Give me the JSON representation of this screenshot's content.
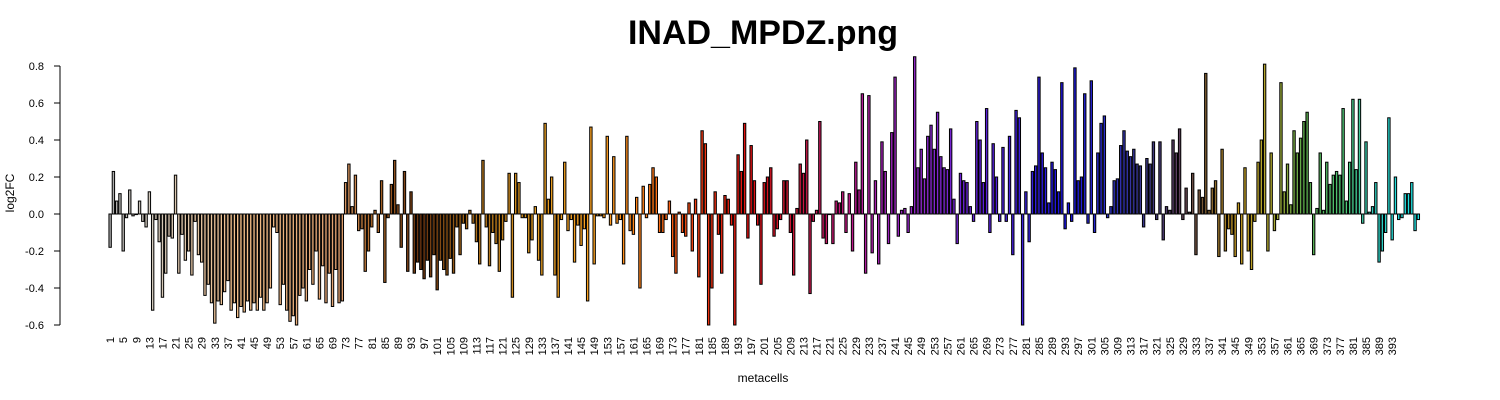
{
  "chart_data": {
    "type": "bar",
    "title": "INAD_MPDZ.png",
    "xlabel": "metacells",
    "ylabel": "log2FC",
    "ylim": [
      -0.6,
      0.8
    ],
    "y_ticks": [
      "-0.6",
      "-0.4",
      "-0.2",
      "0.0",
      "0.2",
      "0.4",
      "0.6",
      "0.8"
    ],
    "x_tick_labels": [
      "1",
      "5",
      "9",
      "13",
      "17",
      "21",
      "25",
      "29",
      "33",
      "37",
      "41",
      "45",
      "49",
      "53",
      "57",
      "61",
      "65",
      "69",
      "73",
      "77",
      "81",
      "85",
      "89",
      "93",
      "97",
      "101",
      "105",
      "109",
      "113",
      "117",
      "121",
      "125",
      "129",
      "133",
      "137",
      "141",
      "145",
      "149",
      "153",
      "157",
      "161",
      "165",
      "169",
      "173",
      "177",
      "181",
      "185",
      "189",
      "193",
      "197",
      "201",
      "205",
      "209",
      "213",
      "217",
      "221",
      "225",
      "229",
      "233",
      "237",
      "241",
      "245",
      "249",
      "253",
      "257",
      "261",
      "265",
      "269",
      "273",
      "277",
      "281",
      "285",
      "289",
      "293",
      "297",
      "301",
      "305",
      "309",
      "313",
      "317",
      "321",
      "325",
      "329",
      "333",
      "337",
      "341",
      "345",
      "349",
      "353",
      "357",
      "361",
      "365",
      "369",
      "373",
      "377",
      "381",
      "385",
      "389",
      "393"
    ],
    "values": [
      -0.18,
      0.23,
      0.07,
      0.11,
      -0.2,
      -0.02,
      0.13,
      -0.01,
      0.0,
      0.07,
      -0.04,
      -0.07,
      0.12,
      -0.52,
      -0.03,
      -0.15,
      -0.45,
      -0.32,
      -0.12,
      -0.13,
      0.21,
      -0.32,
      -0.11,
      -0.25,
      -0.2,
      -0.33,
      -0.04,
      -0.22,
      -0.26,
      -0.44,
      -0.38,
      -0.48,
      -0.59,
      -0.47,
      -0.49,
      -0.42,
      -0.36,
      -0.52,
      -0.48,
      -0.56,
      -0.5,
      -0.53,
      -0.47,
      -0.52,
      -0.48,
      -0.52,
      -0.45,
      -0.52,
      -0.48,
      -0.4,
      -0.07,
      -0.1,
      -0.49,
      -0.38,
      -0.52,
      -0.58,
      -0.55,
      -0.61,
      -0.44,
      -0.4,
      -0.47,
      -0.3,
      -0.38,
      -0.2,
      -0.46,
      -0.28,
      -0.48,
      -0.32,
      -0.5,
      -0.3,
      -0.48,
      -0.47,
      0.17,
      0.27,
      0.04,
      0.21,
      -0.09,
      -0.08,
      -0.31,
      -0.2,
      -0.07,
      0.02,
      -0.1,
      0.18,
      -0.37,
      -0.02,
      0.16,
      0.29,
      0.05,
      -0.18,
      0.23,
      -0.31,
      0.12,
      -0.32,
      -0.26,
      -0.3,
      -0.35,
      -0.25,
      -0.34,
      -0.22,
      -0.41,
      -0.25,
      -0.3,
      -0.33,
      -0.24,
      -0.32,
      -0.07,
      -0.22,
      -0.05,
      -0.08,
      0.02,
      -0.05,
      -0.15,
      -0.27,
      0.29,
      -0.07,
      -0.28,
      -0.1,
      -0.16,
      -0.31,
      -0.14,
      -0.04,
      0.22,
      -0.45,
      0.22,
      0.17,
      -0.02,
      -0.02,
      -0.21,
      -0.14,
      0.04,
      -0.25,
      -0.33,
      0.49,
      0.08,
      0.2,
      -0.33,
      -0.45,
      -0.03,
      0.28,
      -0.09,
      -0.03,
      -0.26,
      -0.06,
      -0.17,
      -0.08,
      -0.47,
      0.47,
      -0.27,
      -0.01,
      -0.01,
      -0.02,
      0.42,
      -0.06,
      0.31,
      -0.05,
      -0.03,
      -0.27,
      0.42,
      -0.09,
      -0.11,
      0.09,
      -0.4,
      0.15,
      -0.02,
      0.16,
      0.25,
      0.2,
      -0.1,
      -0.1,
      -0.03,
      0.07,
      -0.23,
      -0.32,
      0.01,
      -0.1,
      -0.12,
      0.06,
      -0.2,
      0.08,
      -0.34,
      0.45,
      0.38,
      -0.61,
      -0.4,
      0.12,
      -0.11,
      -0.32,
      0.1,
      0.08,
      -0.06,
      -0.61,
      0.32,
      0.23,
      0.49,
      -0.13,
      0.37,
      0.18,
      -0.06,
      -0.38,
      0.17,
      0.2,
      0.25,
      -0.12,
      -0.08,
      -0.03,
      0.18,
      0.18,
      -0.1,
      -0.33,
      0.03,
      0.27,
      0.22,
      0.4,
      -0.43,
      -0.04,
      0.02,
      0.5,
      -0.13,
      -0.16,
      0.0,
      -0.16,
      0.07,
      0.06,
      0.12,
      -0.1,
      0.11,
      -0.2,
      0.28,
      0.13,
      0.65,
      -0.32,
      0.64,
      -0.21,
      0.18,
      -0.27,
      0.39,
      0.23,
      -0.16,
      0.44,
      0.74,
      -0.12,
      0.02,
      0.03,
      -0.1,
      0.04,
      0.85,
      0.25,
      0.35,
      0.19,
      0.42,
      0.48,
      0.35,
      0.55,
      0.31,
      0.25,
      0.24,
      0.46,
      0.08,
      -0.16,
      0.22,
      0.18,
      0.17,
      0.04,
      -0.04,
      0.5,
      0.4,
      0.17,
      0.57,
      -0.1,
      0.38,
      0.2,
      -0.04,
      0.36,
      -0.04,
      0.42,
      -0.22,
      0.56,
      0.52,
      -0.61,
      0.12,
      -0.15,
      0.23,
      0.26,
      0.74,
      0.33,
      0.25,
      0.06,
      0.28,
      0.24,
      0.12,
      0.71,
      -0.08,
      0.06,
      -0.04,
      0.79,
      0.18,
      0.2,
      0.65,
      -0.05,
      0.72,
      -0.1,
      0.33,
      0.49,
      0.53,
      -0.02,
      0.04,
      0.18,
      0.19,
      0.37,
      0.45,
      0.34,
      0.31,
      0.35,
      0.27,
      0.26,
      -0.07,
      0.3,
      0.27,
      0.39,
      -0.03,
      0.39,
      -0.14,
      0.04,
      0.02,
      0.4,
      0.33,
      0.46,
      -0.03,
      0.14,
      0.01,
      0.22,
      -0.22,
      0.13,
      0.09,
      0.76,
      0.02,
      0.14,
      0.18,
      -0.23,
      0.35,
      -0.2,
      -0.08,
      -0.11,
      -0.23,
      0.06,
      -0.27,
      0.25,
      -0.2,
      -0.3,
      -0.04,
      0.28,
      0.4,
      0.81,
      -0.2,
      0.33,
      -0.09,
      -0.03,
      0.71,
      0.12,
      0.27,
      0.05,
      0.45,
      0.33,
      0.41,
      0.5,
      0.55,
      0.17,
      -0.22,
      0.03,
      0.33,
      0.02,
      0.28,
      0.16,
      0.21,
      0.23,
      0.21,
      0.57,
      0.07,
      0.28,
      0.62,
      0.24,
      0.62,
      -0.05,
      0.39,
      0.01,
      0.04,
      0.17,
      -0.26,
      -0.2,
      -0.1,
      0.52,
      -0.14,
      0.2,
      -0.03,
      -0.02,
      0.11,
      0.11,
      0.17,
      -0.09,
      -0.03
    ],
    "color_stops": [
      {
        "at": 0,
        "color": "#a9a9a9"
      },
      {
        "at": 12,
        "color": "#d0c8bc"
      },
      {
        "at": 40,
        "color": "#f4c08a"
      },
      {
        "at": 70,
        "color": "#e0a070"
      },
      {
        "at": 80,
        "color": "#b06a2a"
      },
      {
        "at": 95,
        "color": "#6a3410"
      },
      {
        "at": 110,
        "color": "#a66a1a"
      },
      {
        "at": 130,
        "color": "#e09a20"
      },
      {
        "at": 150,
        "color": "#ffa220"
      },
      {
        "at": 165,
        "color": "#ff7a18"
      },
      {
        "at": 180,
        "color": "#ee3a10"
      },
      {
        "at": 195,
        "color": "#e01010"
      },
      {
        "at": 210,
        "color": "#c81838"
      },
      {
        "at": 225,
        "color": "#c01880"
      },
      {
        "at": 237,
        "color": "#9e20b8"
      },
      {
        "at": 250,
        "color": "#8a28cc"
      },
      {
        "at": 265,
        "color": "#6020d8"
      },
      {
        "at": 280,
        "color": "#3820d8"
      },
      {
        "at": 292,
        "color": "#1a14e0"
      },
      {
        "at": 305,
        "color": "#2c30c8"
      },
      {
        "at": 318,
        "color": "#3c3880"
      },
      {
        "at": 326,
        "color": "#5a3c60"
      },
      {
        "at": 335,
        "color": "#7a5a30"
      },
      {
        "at": 345,
        "color": "#c49a20"
      },
      {
        "at": 355,
        "color": "#b0a830"
      },
      {
        "at": 365,
        "color": "#5aa84a"
      },
      {
        "at": 378,
        "color": "#4cc87a"
      },
      {
        "at": 386,
        "color": "#30c8b8"
      },
      {
        "at": 395,
        "color": "#20e0e0"
      }
    ]
  }
}
